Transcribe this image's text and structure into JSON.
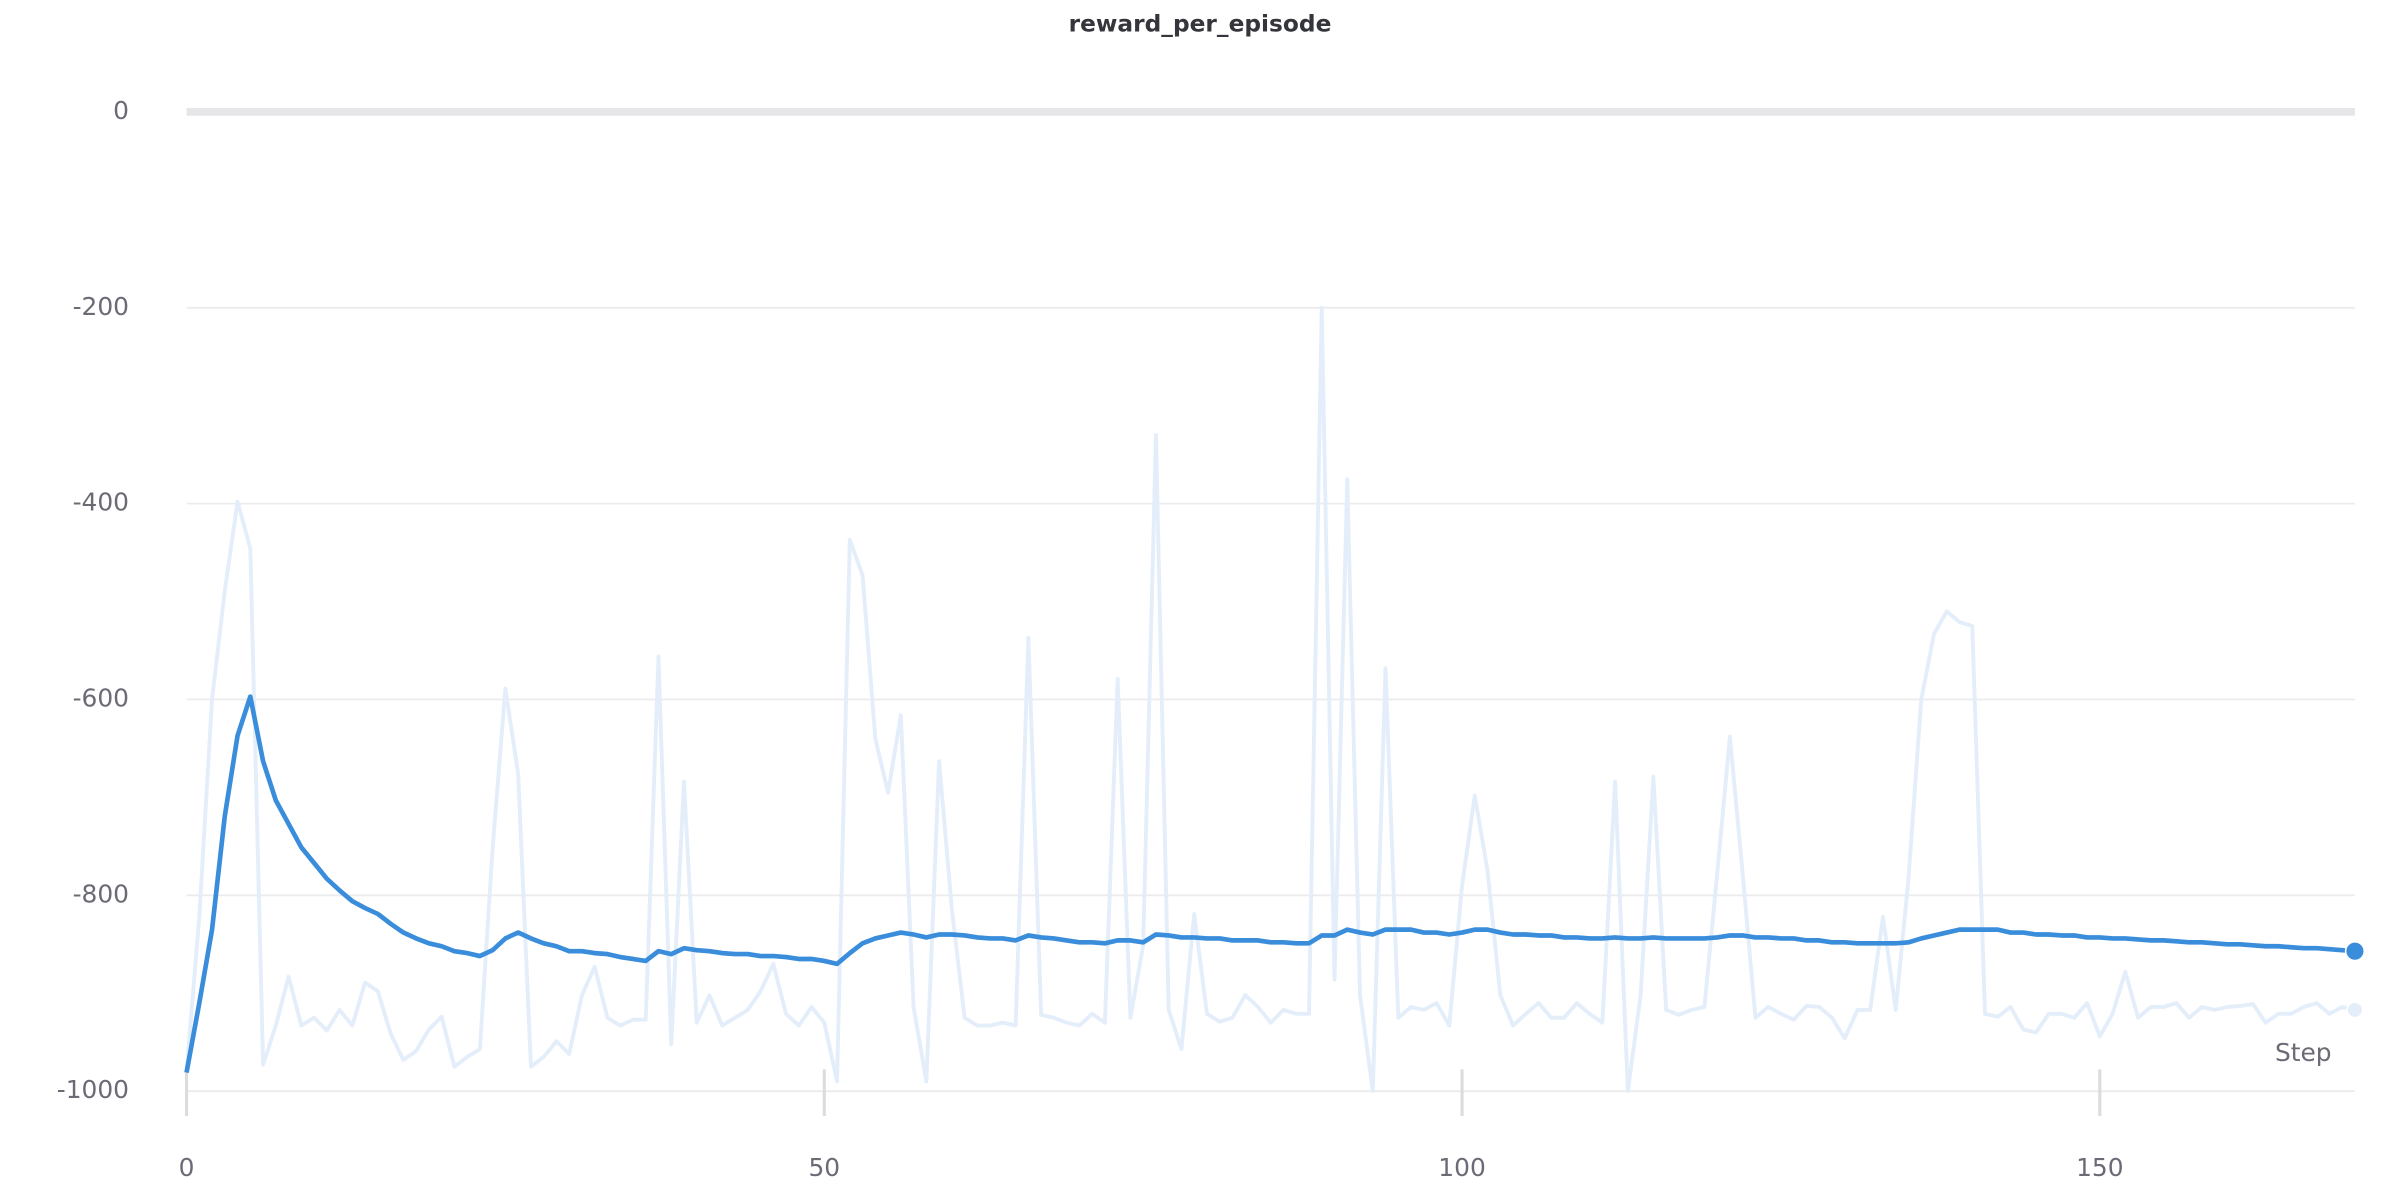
{
  "chart_data": {
    "type": "line",
    "title": "reward_per_episode",
    "x_label": "Step",
    "x": [
      0,
      1,
      2,
      3,
      4,
      5,
      6,
      7,
      8,
      9,
      10,
      11,
      12,
      13,
      14,
      15,
      16,
      17,
      18,
      19,
      20,
      21,
      22,
      23,
      24,
      25,
      26,
      27,
      28,
      29,
      30,
      31,
      32,
      33,
      34,
      35,
      36,
      37,
      38,
      39,
      40,
      41,
      42,
      43,
      44,
      45,
      46,
      47,
      48,
      49,
      50,
      51,
      52,
      53,
      54,
      55,
      56,
      57,
      58,
      59,
      60,
      61,
      62,
      63,
      64,
      65,
      66,
      67,
      68,
      69,
      70,
      71,
      72,
      73,
      74,
      75,
      76,
      77,
      78,
      79,
      80,
      81,
      82,
      83,
      84,
      85,
      86,
      87,
      88,
      89,
      90,
      91,
      92,
      93,
      94,
      95,
      96,
      97,
      98,
      99,
      100,
      101,
      102,
      103,
      104,
      105,
      106,
      107,
      108,
      109,
      110,
      111,
      112,
      113,
      114,
      115,
      116,
      117,
      118,
      119,
      120,
      121,
      122,
      123,
      124,
      125,
      126,
      127,
      128,
      129,
      130,
      131,
      132,
      133,
      134,
      135,
      136,
      137,
      138,
      139,
      140,
      141,
      142,
      143,
      144,
      145,
      146,
      147,
      148,
      149,
      150,
      151,
      152,
      153,
      154,
      155,
      156,
      157,
      158,
      159,
      160,
      161,
      162,
      163,
      164,
      165,
      166,
      167,
      168,
      169,
      170
    ],
    "series": [
      {
        "color": "#e4eefa",
        "values": [
          -981,
          -822,
          -600,
          -489,
          -398,
          -446,
          -973,
          -933,
          -883,
          -933,
          -925,
          -938,
          -917,
          -933,
          -889,
          -898,
          -941,
          -968,
          -959,
          -937,
          -924,
          -975,
          -965,
          -957,
          -751,
          -589,
          -676,
          -975,
          -965,
          -949,
          -962,
          -902,
          -873,
          -925,
          -933,
          -927,
          -927,
          -556,
          -952,
          -684,
          -930,
          -902,
          -933,
          -925,
          -917,
          -898,
          -870,
          -921,
          -933,
          -914,
          -930,
          -990,
          -437,
          -473,
          -640,
          -695,
          -616,
          -914,
          -990,
          -663,
          -814,
          -925,
          -933,
          -933,
          -930,
          -933,
          -537,
          -922,
          -925,
          -930,
          -933,
          -921,
          -930,
          -579,
          -925,
          -851,
          -330,
          -917,
          -957,
          -819,
          -921,
          -929,
          -925,
          -902,
          -914,
          -930,
          -917,
          -921,
          -921,
          -200,
          -886,
          -375,
          -902,
          -1000,
          -568,
          -925,
          -914,
          -917,
          -910,
          -933,
          -790,
          -698,
          -775,
          -902,
          -933,
          -921,
          -910,
          -925,
          -925,
          -910,
          -921,
          -930,
          -684,
          -1000,
          -902,
          -679,
          -917,
          -922,
          -917,
          -914,
          -778,
          -638,
          -778,
          -925,
          -914,
          -921,
          -927,
          -913,
          -914,
          -925,
          -946,
          -917,
          -917,
          -822,
          -917,
          -783,
          -600,
          -533,
          -510,
          -521,
          -525,
          -921,
          -924,
          -914,
          -937,
          -940,
          -921,
          -921,
          -925,
          -910,
          -944,
          -921,
          -878,
          -925,
          -914,
          -914,
          -910,
          -925,
          -914,
          -917,
          -914,
          -913,
          -911,
          -930,
          -921,
          -921,
          -914,
          -910,
          -921,
          -914,
          -917
        ]
      },
      {
        "color": "#3a8ddb",
        "values": [
          -981,
          -910,
          -835,
          -719,
          -637,
          -597,
          -663,
          -703,
          -727,
          -751,
          -767,
          -783,
          -795,
          -806,
          -813,
          -819,
          -829,
          -838,
          -844,
          -849,
          -852,
          -857,
          -859,
          -862,
          -856,
          -844,
          -838,
          -844,
          -849,
          -852,
          -857,
          -857,
          -859,
          -860,
          -863,
          -865,
          -867,
          -857,
          -860,
          -854,
          -856,
          -857,
          -859,
          -860,
          -860,
          -862,
          -862,
          -863,
          -865,
          -865,
          -867,
          -870,
          -859,
          -849,
          -844,
          -841,
          -838,
          -840,
          -843,
          -840,
          -840,
          -841,
          -843,
          -844,
          -844,
          -846,
          -841,
          -843,
          -844,
          -846,
          -848,
          -848,
          -849,
          -846,
          -846,
          -848,
          -840,
          -841,
          -843,
          -843,
          -844,
          -844,
          -846,
          -846,
          -846,
          -848,
          -848,
          -849,
          -849,
          -841,
          -841,
          -835,
          -838,
          -840,
          -835,
          -835,
          -835,
          -838,
          -838,
          -840,
          -838,
          -835,
          -835,
          -838,
          -840,
          -840,
          -841,
          -841,
          -843,
          -843,
          -844,
          -844,
          -843,
          -844,
          -844,
          -843,
          -844,
          -844,
          -844,
          -844,
          -843,
          -841,
          -841,
          -843,
          -843,
          -844,
          -844,
          -846,
          -846,
          -848,
          -848,
          -849,
          -849,
          -849,
          -849,
          -848,
          -844,
          -841,
          -838,
          -835,
          -835,
          -835,
          -835,
          -838,
          -838,
          -840,
          -840,
          -841,
          -841,
          -843,
          -843,
          -844,
          -844,
          -845,
          -846,
          -846,
          -847,
          -848,
          -848,
          -849,
          -850,
          -850,
          -851,
          -852,
          -852,
          -853,
          -854,
          -854,
          -855,
          -856,
          -857
        ]
      }
    ],
    "xlim": [
      0,
      170
    ],
    "xticks": [
      0,
      50,
      100,
      150
    ],
    "ylim": [
      -1000,
      0
    ],
    "yticks": [
      0,
      -200,
      -400,
      -600,
      -800,
      -1000
    ],
    "grid": true
  }
}
